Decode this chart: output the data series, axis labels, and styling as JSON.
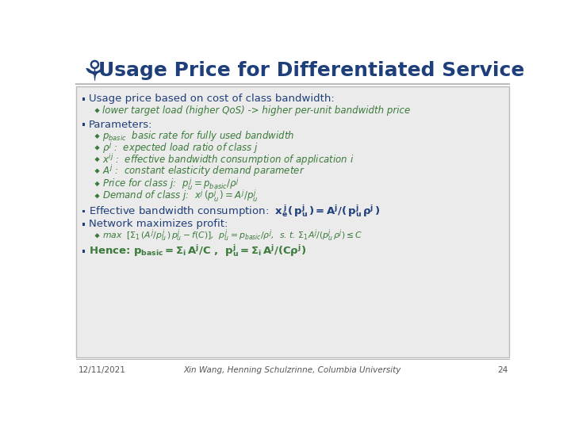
{
  "title": "Usage Price for Differentiated Service",
  "title_color": "#1F3F7A",
  "background_color": "#FFFFFF",
  "content_bg_color": "#EBEBEB",
  "dark_blue": "#1F3F7A",
  "green": "#3A7A3A",
  "footer_date": "12/11/2021",
  "footer_author": "Xin Wang, Henning Schulzrinne, Columbia University",
  "footer_page": "24"
}
